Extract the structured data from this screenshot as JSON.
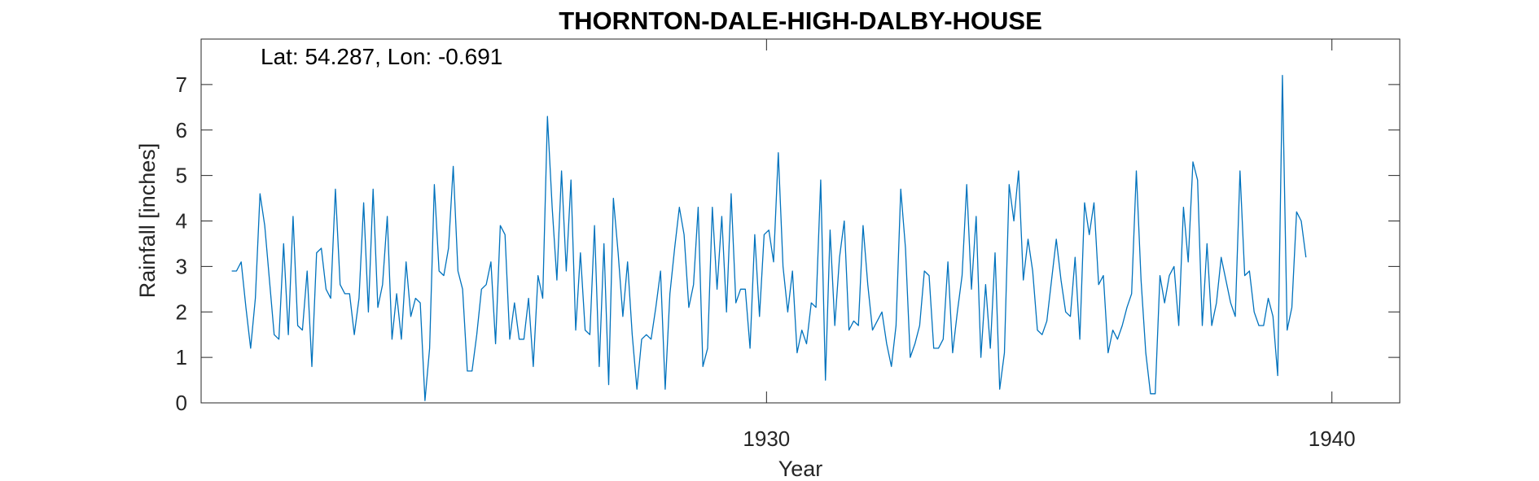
{
  "chart_data": {
    "type": "line",
    "title": "THORNTON-DALE-HIGH-DALBY-HOUSE",
    "annotation": "Lat: 54.287, Lon: -0.691",
    "xlabel": "Year",
    "ylabel": "Rainfall [inches]",
    "xlim": [
      1920.0,
      1941.2
    ],
    "ylim": [
      0,
      8
    ],
    "xticks": [
      1930,
      1940
    ],
    "yticks": [
      0,
      1,
      2,
      3,
      4,
      5,
      6,
      7
    ],
    "grid": false,
    "line_color": "#0072BD",
    "x_start": 1920.542,
    "x_step_years": 0.08333,
    "values": [
      2.9,
      2.9,
      3.1,
      2.1,
      1.2,
      2.3,
      4.6,
      3.9,
      2.7,
      1.5,
      1.4,
      3.5,
      1.5,
      4.1,
      1.7,
      1.6,
      2.9,
      0.8,
      3.3,
      3.4,
      2.5,
      2.3,
      4.7,
      2.6,
      2.4,
      2.4,
      1.5,
      2.3,
      4.4,
      2.0,
      4.7,
      2.1,
      2.6,
      4.1,
      1.4,
      2.4,
      1.4,
      3.1,
      1.9,
      2.3,
      2.2,
      0.05,
      1.2,
      4.8,
      2.9,
      2.8,
      3.4,
      5.2,
      2.9,
      2.5,
      0.7,
      0.7,
      1.5,
      2.5,
      2.6,
      3.1,
      1.3,
      3.9,
      3.7,
      1.4,
      2.2,
      1.4,
      1.4,
      2.3,
      0.8,
      2.8,
      2.3,
      6.3,
      4.3,
      2.7,
      5.1,
      2.9,
      4.9,
      1.6,
      3.3,
      1.6,
      1.5,
      3.9,
      0.8,
      3.5,
      0.4,
      4.5,
      3.3,
      1.9,
      3.1,
      1.5,
      0.3,
      1.4,
      1.5,
      1.4,
      2.1,
      2.9,
      0.3,
      2.4,
      3.4,
      4.3,
      3.7,
      2.1,
      2.6,
      4.3,
      0.8,
      1.2,
      4.3,
      2.5,
      4.1,
      2.0,
      4.6,
      2.2,
      2.5,
      2.5,
      1.2,
      3.7,
      1.9,
      3.7,
      3.8,
      3.1,
      5.5,
      3.0,
      2.0,
      2.9,
      1.1,
      1.6,
      1.3,
      2.2,
      2.1,
      4.9,
      0.5,
      3.8,
      1.7,
      3.2,
      4.0,
      1.6,
      1.8,
      1.7,
      3.9,
      2.6,
      1.6,
      1.8,
      2.0,
      1.3,
      0.8,
      1.7,
      4.7,
      3.4,
      1.0,
      1.3,
      1.7,
      2.9,
      2.8,
      1.2,
      1.2,
      1.4,
      3.1,
      1.1,
      2.0,
      2.8,
      4.8,
      2.5,
      4.1,
      1.0,
      2.6,
      1.2,
      3.3,
      0.3,
      1.1,
      4.8,
      4.0,
      5.1,
      2.7,
      3.6,
      2.9,
      1.6,
      1.5,
      1.8,
      2.7,
      3.6,
      2.7,
      2.0,
      1.9,
      3.2,
      1.4,
      4.4,
      3.7,
      4.4,
      2.6,
      2.8,
      1.1,
      1.6,
      1.4,
      1.7,
      2.1,
      2.4,
      5.1,
      2.7,
      1.1,
      0.2,
      0.2,
      2.8,
      2.2,
      2.8,
      3.0,
      1.7,
      4.3,
      3.1,
      5.3,
      4.9,
      1.7,
      3.5,
      1.7,
      2.2,
      3.2,
      2.7,
      2.2,
      1.9,
      5.1,
      2.8,
      2.9,
      2.0,
      1.7,
      1.7,
      2.3,
      1.9,
      0.6,
      7.2,
      1.6,
      2.1,
      4.2,
      4.0,
      3.2
    ]
  }
}
